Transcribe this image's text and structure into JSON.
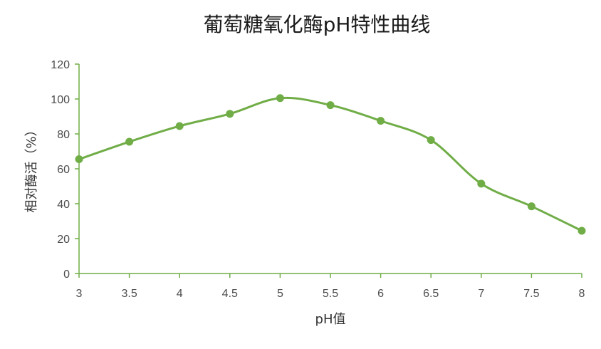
{
  "chart_data": {
    "type": "line",
    "title": "葡萄糖氧化酶pH特性曲线",
    "xlabel": "pH值",
    "ylabel": "相对酶活（%）",
    "x": [
      3,
      3.5,
      4,
      4.5,
      5,
      5.5,
      6,
      6.5,
      7,
      7.5,
      8
    ],
    "x_tick_labels": [
      "3",
      "3.5",
      "4",
      "4.5",
      "5",
      "5.5",
      "6",
      "6.5",
      "7",
      "7.5",
      "8"
    ],
    "y_ticks": [
      0,
      20,
      40,
      60,
      80,
      100,
      120
    ],
    "ylim": [
      0,
      120
    ],
    "xlim": [
      3,
      8
    ],
    "series": [
      {
        "values": [
          65.5,
          75.5,
          84.5,
          91.5,
          100.5,
          96.5,
          87.5,
          76.5,
          51.5,
          38.5,
          24.5
        ],
        "color": "#70ad47",
        "smooth": true,
        "markers": true
      }
    ],
    "grid": false,
    "legend": "none"
  }
}
